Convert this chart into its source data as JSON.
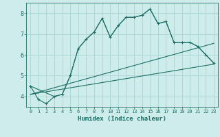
{
  "xlabel": "Humidex (Indice chaleur)",
  "background_color": "#ceecea",
  "grid_color": "#aed8d5",
  "line_color": "#1a6e65",
  "xlim": [
    -0.5,
    23.5
  ],
  "ylim": [
    3.5,
    8.5
  ],
  "yticks": [
    4,
    5,
    6,
    7,
    8
  ],
  "xticks": [
    0,
    1,
    2,
    3,
    4,
    5,
    6,
    7,
    8,
    9,
    10,
    11,
    12,
    13,
    14,
    15,
    16,
    17,
    18,
    19,
    20,
    21,
    22,
    23
  ],
  "series_main": {
    "x": [
      0,
      1,
      2,
      3,
      4,
      5,
      6,
      7,
      8,
      9,
      10,
      11,
      12,
      13,
      14,
      15,
      16,
      17,
      18,
      19,
      20,
      21,
      22,
      23
    ],
    "y": [
      4.5,
      3.85,
      3.65,
      4.0,
      4.1,
      5.0,
      6.3,
      6.75,
      7.1,
      7.75,
      6.85,
      7.4,
      7.8,
      7.8,
      7.9,
      8.2,
      7.5,
      7.6,
      6.6,
      6.6,
      6.6,
      6.4,
      6.0,
      5.6
    ]
  },
  "series_envelope": {
    "x": [
      0,
      3,
      4,
      5,
      6,
      7,
      8,
      9,
      10,
      11,
      12,
      13,
      14,
      15,
      16,
      17,
      18,
      19,
      20,
      21,
      22,
      23
    ],
    "y": [
      4.5,
      4.0,
      4.1,
      5.0,
      6.3,
      6.75,
      7.1,
      7.75,
      6.85,
      7.4,
      7.8,
      7.8,
      7.9,
      8.2,
      7.5,
      7.6,
      6.6,
      6.6,
      6.6,
      6.4,
      6.0,
      5.6
    ]
  },
  "line1": {
    "x": [
      0,
      23
    ],
    "y": [
      4.1,
      6.55
    ]
  },
  "line2": {
    "x": [
      0,
      23
    ],
    "y": [
      4.1,
      5.55
    ]
  }
}
